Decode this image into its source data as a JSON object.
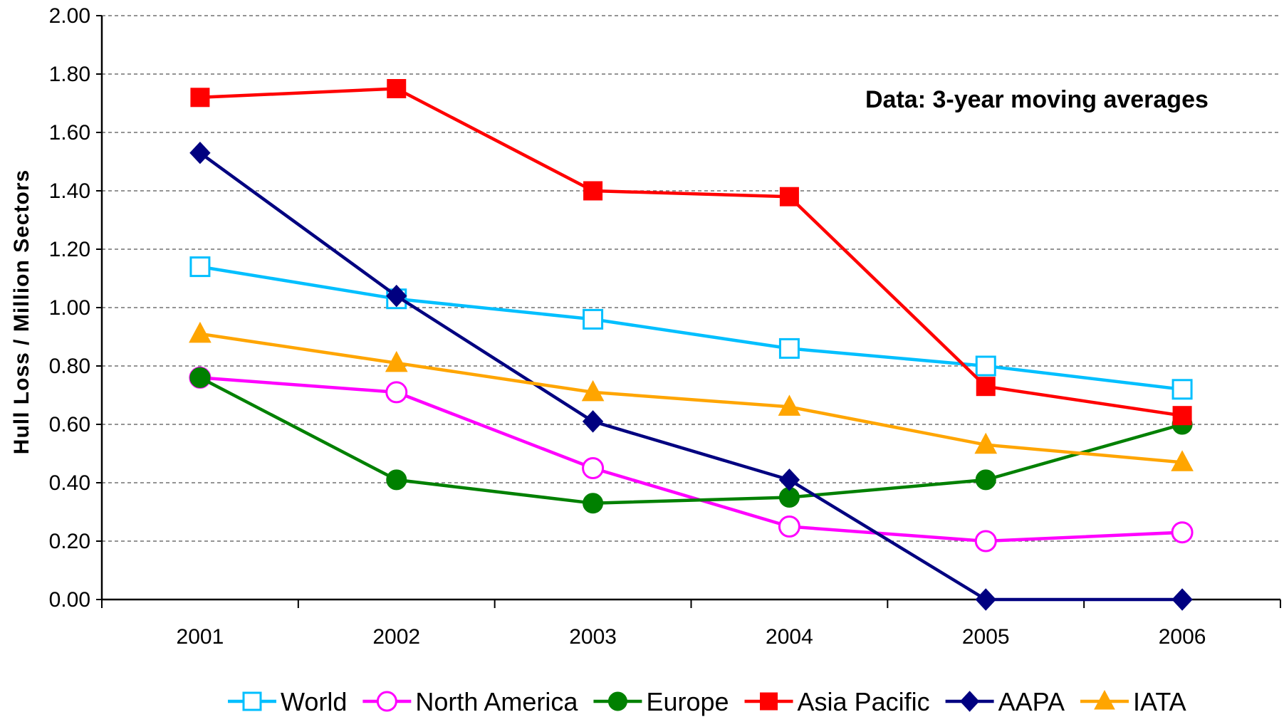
{
  "chart_data": {
    "type": "line",
    "title": "",
    "annotation": "Data: 3-year moving averages",
    "xlabel": "",
    "ylabel": "Hull Loss / Million Sectors",
    "categories": [
      "2001",
      "2002",
      "2003",
      "2004",
      "2005",
      "2006"
    ],
    "ylim": [
      0,
      2
    ],
    "yticks": [
      "0.00",
      "0.20",
      "0.40",
      "0.60",
      "0.80",
      "1.00",
      "1.20",
      "1.40",
      "1.60",
      "1.80",
      "2.00"
    ],
    "grid": "horizontal dashed",
    "legend_position": "bottom",
    "series": [
      {
        "name": "World",
        "color": "#00BFFF",
        "marker": "square-open",
        "values": [
          1.14,
          1.03,
          0.96,
          0.86,
          0.8,
          0.72
        ]
      },
      {
        "name": "North America",
        "color": "#FF00FF",
        "marker": "circle-open",
        "values": [
          0.76,
          0.71,
          0.45,
          0.25,
          0.2,
          0.23
        ]
      },
      {
        "name": "Europe",
        "color": "#008000",
        "marker": "circle-filled",
        "values": [
          0.76,
          0.41,
          0.33,
          0.35,
          0.41,
          0.6
        ]
      },
      {
        "name": "Asia Pacific",
        "color": "#FF0000",
        "marker": "square-filled",
        "values": [
          1.72,
          1.75,
          1.4,
          1.38,
          0.73,
          0.63
        ]
      },
      {
        "name": "AAPA",
        "color": "#000080",
        "marker": "diamond",
        "values": [
          1.53,
          1.04,
          0.61,
          0.41,
          0.0,
          0.0
        ]
      },
      {
        "name": "IATA",
        "color": "#FFA500",
        "marker": "triangle",
        "values": [
          0.91,
          0.81,
          0.71,
          0.66,
          0.53,
          0.47
        ]
      }
    ]
  }
}
